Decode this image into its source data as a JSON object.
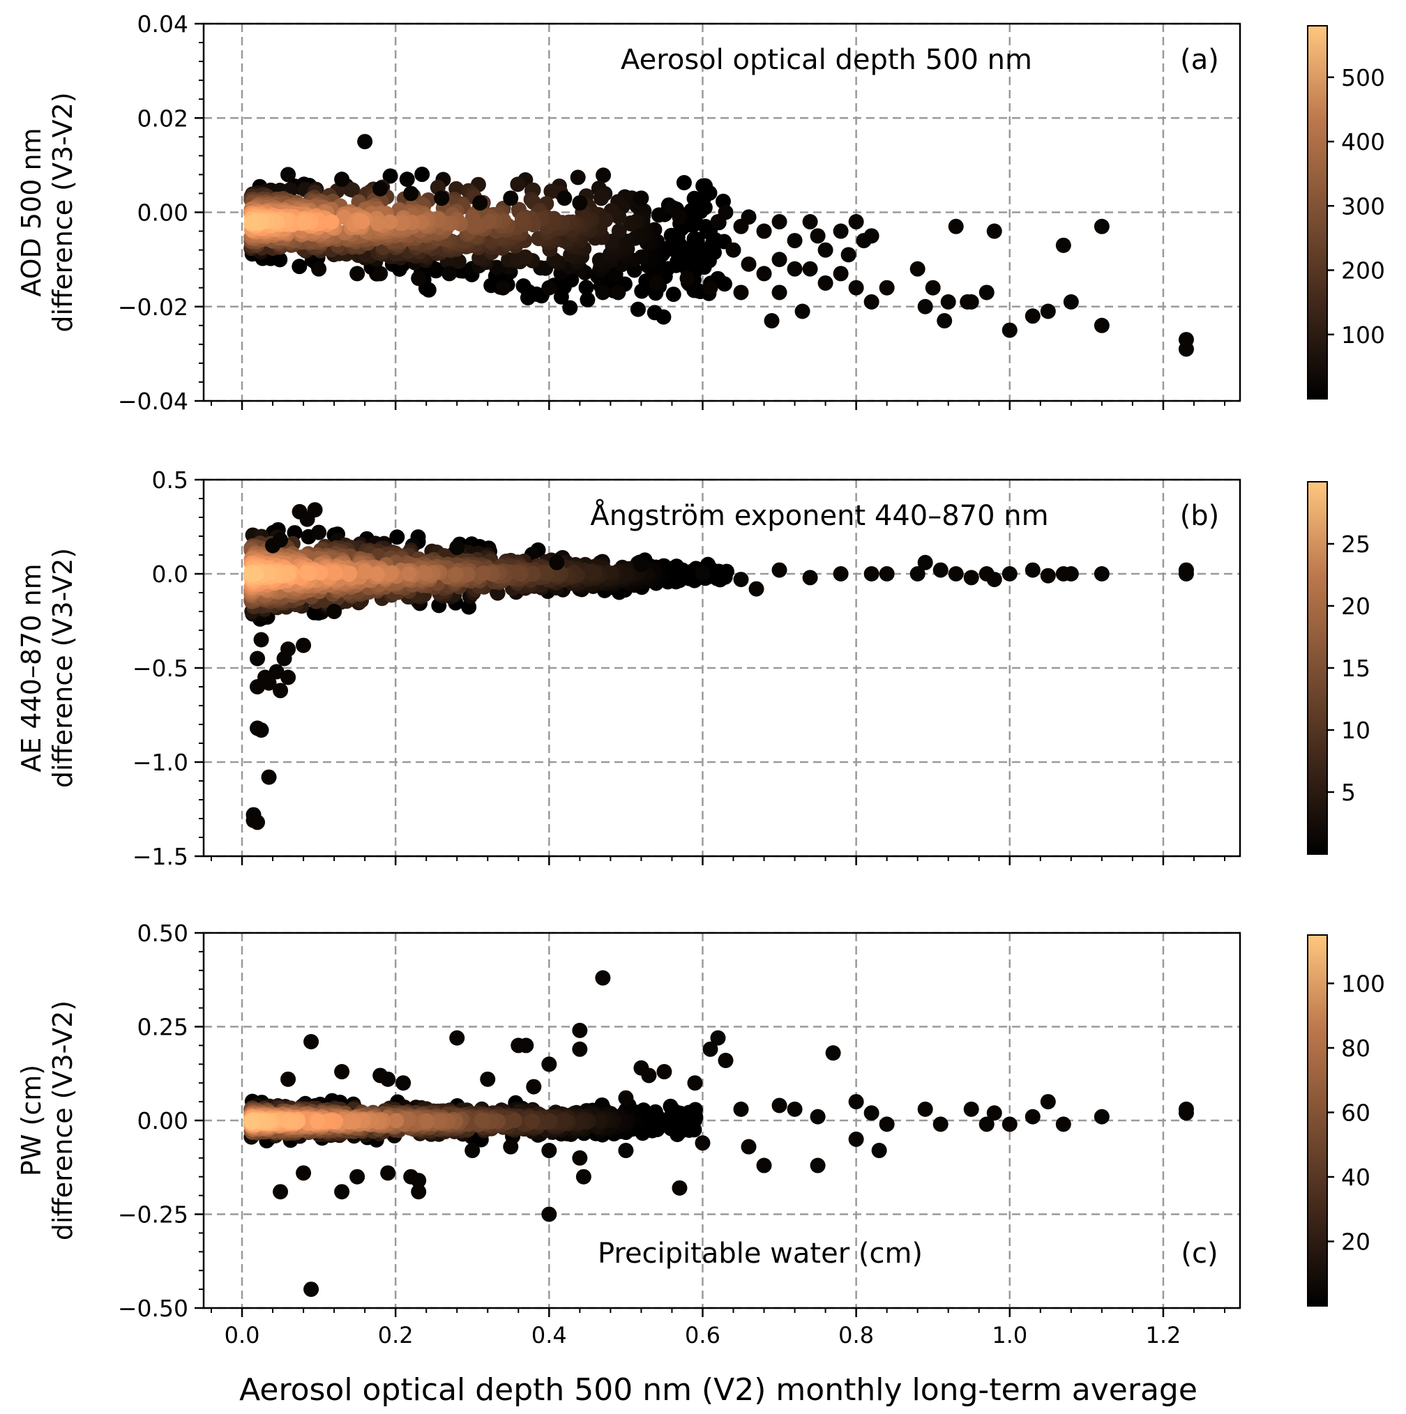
{
  "figure": {
    "xlabel": "Aerosol  optical depth 500 nm (V2) monthly long-term average",
    "xticks": [
      "0.0",
      "0.2",
      "0.4",
      "0.6",
      "0.8",
      "1.0",
      "1.2"
    ],
    "colormap": "copper"
  },
  "chart_data": [
    {
      "type": "scatter",
      "panel": "(a)",
      "title": "Aerosol optical  depth 500 nm",
      "ylabel_line1": "AOD 500 nm",
      "ylabel_line2": "difference (V3-V2)",
      "xlim": [
        -0.05,
        1.3
      ],
      "ylim": [
        -0.04,
        0.04
      ],
      "yticks": [
        -0.04,
        -0.02,
        0.0,
        0.02,
        0.04
      ],
      "ytick_labels": [
        "−0.04",
        "−0.02",
        "0.00",
        "0.02",
        "0.04"
      ],
      "xticks": [
        0.0,
        0.2,
        0.4,
        0.6,
        0.8,
        1.0,
        1.2
      ],
      "grid": true,
      "colorbar": {
        "min": 0,
        "max": 580,
        "ticks": [
          100,
          200,
          300,
          400,
          500
        ],
        "tick_labels": [
          "100",
          "200",
          "300",
          "400",
          "500"
        ]
      },
      "cluster": {
        "x": [
          0.0,
          0.62
        ],
        "y_center": -0.002,
        "slope": -0.006,
        "y_spread": [
          0.006,
          0.013
        ]
      },
      "points": [
        [
          0.16,
          0.015
        ],
        [
          0.06,
          0.008
        ],
        [
          0.13,
          0.007
        ],
        [
          0.18,
          0.005
        ],
        [
          0.22,
          0.004
        ],
        [
          0.26,
          0.003
        ],
        [
          0.31,
          0.002
        ],
        [
          0.35,
          0.003
        ],
        [
          0.42,
          0.003
        ],
        [
          0.44,
          0.002
        ],
        [
          0.52,
          0.003
        ],
        [
          0.56,
          0.001
        ],
        [
          0.57,
          -0.001
        ],
        [
          0.62,
          -0.002
        ],
        [
          0.63,
          0.0
        ],
        [
          0.65,
          -0.003
        ],
        [
          0.66,
          -0.001
        ],
        [
          0.68,
          -0.004
        ],
        [
          0.7,
          -0.002
        ],
        [
          0.72,
          -0.006
        ],
        [
          0.74,
          -0.002
        ],
        [
          0.75,
          -0.005
        ],
        [
          0.76,
          -0.008
        ],
        [
          0.78,
          -0.004
        ],
        [
          0.79,
          -0.009
        ],
        [
          0.8,
          -0.002
        ],
        [
          0.81,
          -0.006
        ],
        [
          0.82,
          -0.005
        ],
        [
          0.64,
          -0.008
        ],
        [
          0.66,
          -0.011
        ],
        [
          0.68,
          -0.013
        ],
        [
          0.7,
          -0.01
        ],
        [
          0.72,
          -0.012
        ],
        [
          0.74,
          -0.012
        ],
        [
          0.76,
          -0.015
        ],
        [
          0.78,
          -0.013
        ],
        [
          0.8,
          -0.016
        ],
        [
          0.82,
          -0.019
        ],
        [
          0.84,
          -0.016
        ],
        [
          0.69,
          -0.023
        ],
        [
          0.7,
          -0.017
        ],
        [
          0.73,
          -0.021
        ],
        [
          0.88,
          -0.012
        ],
        [
          0.89,
          -0.02
        ],
        [
          0.9,
          -0.016
        ],
        [
          0.915,
          -0.023
        ],
        [
          0.92,
          -0.019
        ],
        [
          0.93,
          -0.003
        ],
        [
          0.945,
          -0.019
        ],
        [
          0.97,
          -0.017
        ],
        [
          0.98,
          -0.004
        ],
        [
          1.0,
          -0.025
        ],
        [
          1.03,
          -0.022
        ],
        [
          1.05,
          -0.021
        ],
        [
          1.07,
          -0.007
        ],
        [
          1.08,
          -0.019
        ],
        [
          1.12,
          -0.003
        ],
        [
          1.12,
          -0.024
        ],
        [
          1.23,
          -0.027
        ],
        [
          1.23,
          -0.029
        ],
        [
          0.1,
          -0.012
        ],
        [
          0.15,
          -0.013
        ],
        [
          0.18,
          -0.013
        ],
        [
          0.23,
          -0.014
        ],
        [
          0.27,
          -0.013
        ],
        [
          0.34,
          -0.016
        ],
        [
          0.4,
          -0.016
        ],
        [
          0.47,
          -0.017
        ],
        [
          0.49,
          -0.017
        ],
        [
          0.54,
          -0.015
        ],
        [
          0.58,
          -0.014
        ],
        [
          0.61,
          -0.016
        ],
        [
          0.65,
          -0.017
        ],
        [
          0.95,
          -0.019
        ]
      ]
    },
    {
      "type": "scatter",
      "panel": "(b)",
      "title": "Ångström exponent 440–870 nm",
      "ylabel_line1": "AE 440–870 nm",
      "ylabel_line2": "difference (V3-V2)",
      "xlim": [
        -0.05,
        1.3
      ],
      "ylim": [
        -1.5,
        0.5
      ],
      "yticks": [
        -1.5,
        -1.0,
        -0.5,
        0.0,
        0.5
      ],
      "ytick_labels": [
        "−1.5",
        "−1.0",
        "−0.5",
        "0.0",
        "0.5"
      ],
      "xticks": [
        0.0,
        0.2,
        0.4,
        0.6,
        0.8,
        1.0,
        1.2
      ],
      "grid": true,
      "colorbar": {
        "min": 0,
        "max": 30,
        "ticks": [
          5,
          10,
          15,
          20,
          25
        ],
        "tick_labels": [
          "5",
          "10",
          "15",
          "20",
          "25"
        ]
      },
      "cluster": {
        "x": [
          0.0,
          0.62
        ],
        "y_center": 0.0,
        "slope": 0.0,
        "y_spread": [
          0.2,
          0.03
        ]
      },
      "points": [
        [
          0.075,
          0.33
        ],
        [
          0.095,
          0.34
        ],
        [
          0.085,
          0.29
        ],
        [
          0.05,
          0.18
        ],
        [
          0.1,
          0.22
        ],
        [
          0.04,
          0.15
        ],
        [
          0.02,
          -0.45
        ],
        [
          0.03,
          -0.55
        ],
        [
          0.035,
          -0.58
        ],
        [
          0.045,
          -0.52
        ],
        [
          0.055,
          -0.45
        ],
        [
          0.02,
          -0.6
        ],
        [
          0.05,
          -0.62
        ],
        [
          0.06,
          -0.55
        ],
        [
          0.025,
          -0.35
        ],
        [
          0.06,
          -0.4
        ],
        [
          0.08,
          -0.38
        ],
        [
          0.12,
          -0.2
        ],
        [
          0.02,
          -0.82
        ],
        [
          0.025,
          -0.83
        ],
        [
          0.035,
          -1.08
        ],
        [
          0.015,
          -1.28
        ],
        [
          0.02,
          -1.32
        ],
        [
          0.015,
          -1.31
        ],
        [
          0.28,
          0.14
        ],
        [
          0.41,
          0.06
        ],
        [
          0.52,
          0.05
        ],
        [
          0.6,
          0.0
        ],
        [
          0.65,
          -0.03
        ],
        [
          0.67,
          -0.08
        ],
        [
          0.7,
          0.02
        ],
        [
          0.74,
          -0.02
        ],
        [
          0.78,
          0.0
        ],
        [
          0.82,
          0.0
        ],
        [
          0.84,
          0.0
        ],
        [
          0.88,
          0.0
        ],
        [
          0.89,
          0.06
        ],
        [
          0.91,
          0.02
        ],
        [
          0.93,
          0.0
        ],
        [
          0.95,
          -0.02
        ],
        [
          0.97,
          0.0
        ],
        [
          0.98,
          -0.03
        ],
        [
          1.0,
          0.0
        ],
        [
          1.03,
          0.02
        ],
        [
          1.05,
          -0.01
        ],
        [
          1.07,
          0.0
        ],
        [
          1.08,
          0.0
        ],
        [
          1.12,
          0.0
        ],
        [
          1.23,
          0.02
        ],
        [
          1.23,
          0.0
        ]
      ]
    },
    {
      "type": "scatter",
      "panel": "(c)",
      "title": "Precipitable water (cm)",
      "ylabel_line1": "PW (cm)",
      "ylabel_line2": "difference (V3-V2)",
      "xlim": [
        -0.05,
        1.3
      ],
      "ylim": [
        -0.5,
        0.5
      ],
      "yticks": [
        -0.5,
        -0.25,
        0.0,
        0.25,
        0.5
      ],
      "ytick_labels": [
        "−0.50",
        "−0.25",
        "0.00",
        "0.25",
        "0.50"
      ],
      "xticks": [
        0.0,
        0.2,
        0.4,
        0.6,
        0.8,
        1.0,
        1.2
      ],
      "grid": true,
      "colorbar": {
        "min": 0,
        "max": 115,
        "ticks": [
          20,
          40,
          60,
          80,
          100
        ],
        "tick_labels": [
          "20",
          "40",
          "60",
          "80",
          "100"
        ]
      },
      "cluster": {
        "x": [
          0.0,
          0.58
        ],
        "y_center": -0.002,
        "slope": 0.0,
        "y_spread": [
          0.04,
          0.03
        ]
      },
      "points": [
        [
          0.47,
          0.38
        ],
        [
          0.09,
          0.21
        ],
        [
          0.28,
          0.22
        ],
        [
          0.44,
          0.24
        ],
        [
          0.44,
          0.19
        ],
        [
          0.36,
          0.2
        ],
        [
          0.37,
          0.2
        ],
        [
          0.62,
          0.22
        ],
        [
          0.61,
          0.19
        ],
        [
          0.63,
          0.16
        ],
        [
          0.77,
          0.18
        ],
        [
          0.13,
          0.13
        ],
        [
          0.06,
          0.11
        ],
        [
          0.18,
          0.12
        ],
        [
          0.19,
          0.11
        ],
        [
          0.21,
          0.1
        ],
        [
          0.32,
          0.11
        ],
        [
          0.4,
          0.15
        ],
        [
          0.52,
          0.14
        ],
        [
          0.53,
          0.12
        ],
        [
          0.55,
          0.13
        ],
        [
          0.59,
          0.1
        ],
        [
          0.38,
          0.09
        ],
        [
          0.5,
          0.06
        ],
        [
          0.65,
          0.03
        ],
        [
          0.7,
          0.04
        ],
        [
          0.72,
          0.03
        ],
        [
          0.75,
          0.01
        ],
        [
          0.8,
          0.05
        ],
        [
          0.82,
          0.02
        ],
        [
          0.89,
          0.03
        ],
        [
          0.91,
          -0.01
        ],
        [
          0.95,
          0.03
        ],
        [
          0.97,
          -0.01
        ],
        [
          0.98,
          0.02
        ],
        [
          1.0,
          -0.01
        ],
        [
          1.03,
          0.01
        ],
        [
          1.05,
          0.05
        ],
        [
          1.07,
          -0.01
        ],
        [
          1.12,
          0.01
        ],
        [
          1.23,
          0.02
        ],
        [
          1.23,
          0.03
        ],
        [
          0.05,
          -0.19
        ],
        [
          0.13,
          -0.19
        ],
        [
          0.08,
          -0.14
        ],
        [
          0.15,
          -0.15
        ],
        [
          0.19,
          -0.14
        ],
        [
          0.22,
          -0.15
        ],
        [
          0.23,
          -0.16
        ],
        [
          0.23,
          -0.19
        ],
        [
          0.4,
          -0.25
        ],
        [
          0.44,
          -0.1
        ],
        [
          0.445,
          -0.15
        ],
        [
          0.57,
          -0.18
        ],
        [
          0.68,
          -0.12
        ],
        [
          0.75,
          -0.12
        ],
        [
          0.8,
          -0.05
        ],
        [
          0.83,
          -0.08
        ],
        [
          0.66,
          -0.07
        ],
        [
          0.6,
          -0.06
        ],
        [
          0.09,
          -0.45
        ],
        [
          0.4,
          -0.08
        ],
        [
          0.5,
          -0.08
        ],
        [
          0.3,
          -0.08
        ],
        [
          0.35,
          -0.07
        ],
        [
          0.84,
          -0.01
        ]
      ]
    }
  ]
}
